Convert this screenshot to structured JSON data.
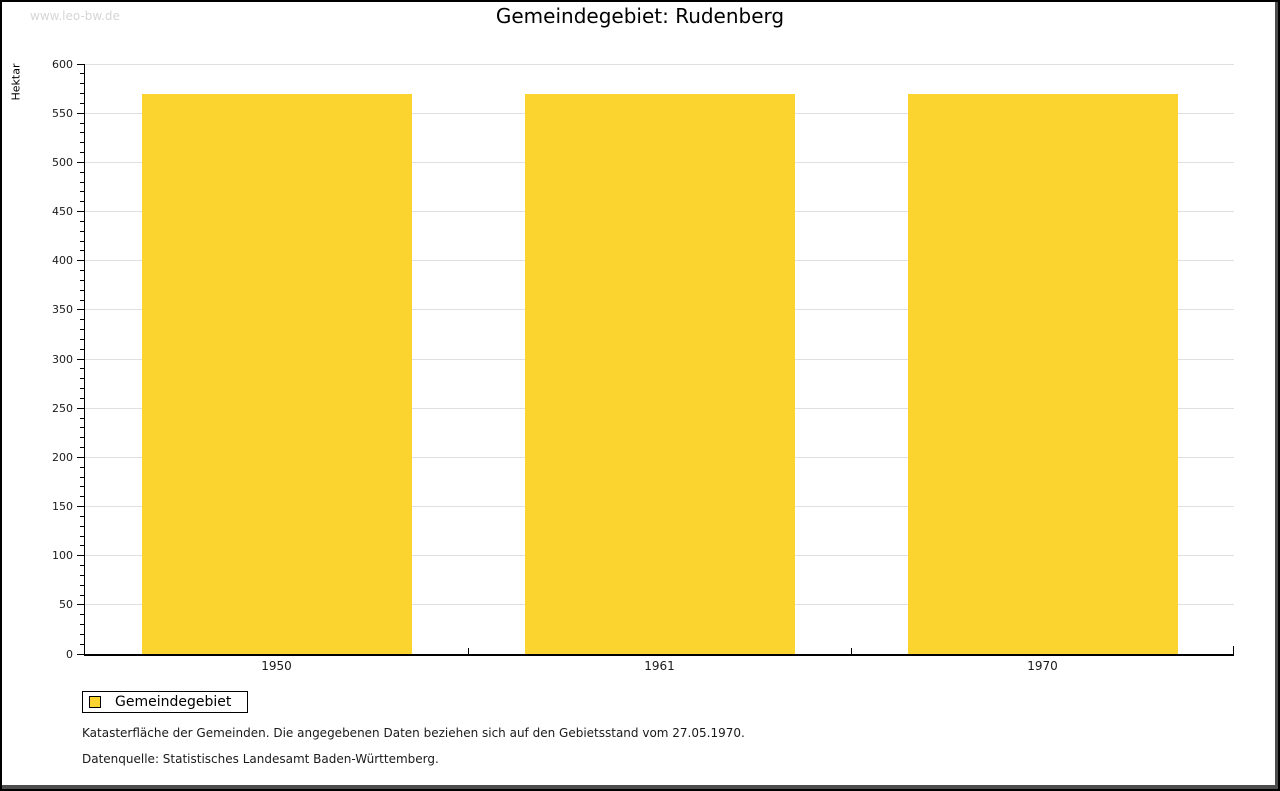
{
  "watermark": "www.leo-bw.de",
  "title": "Gemeindegebiet: Rudenberg",
  "chart_data": {
    "type": "bar",
    "title": "Gemeindegebiet: Rudenberg",
    "categories": [
      "1950",
      "1961",
      "1970"
    ],
    "series": [
      {
        "name": "Gemeindegebiet",
        "values": [
          570,
          570,
          570
        ]
      }
    ],
    "xlabel": "",
    "ylabel": "Hektar",
    "ylim": [
      0,
      600
    ],
    "y_major_step": 50,
    "y_minor_step": 10,
    "grid": true,
    "legend_position": "bottom-left",
    "bar_color": "#FCD42F"
  },
  "legend": {
    "items": [
      {
        "label": "Gemeindegebiet",
        "color": "#FCD42F"
      }
    ]
  },
  "footnotes": [
    "Katasterfläche der Gemeinden. Die angegebenen Daten beziehen sich auf den Gebietsstand vom 27.05.1970.",
    "Datenquelle: Statistisches Landesamt Baden-Württemberg."
  ],
  "colors": {
    "bar": "#FCD42F",
    "gridline": "#E0E0E0",
    "axis": "#000000",
    "watermark": "#D6D6D6",
    "background": "#FFFFFF"
  }
}
